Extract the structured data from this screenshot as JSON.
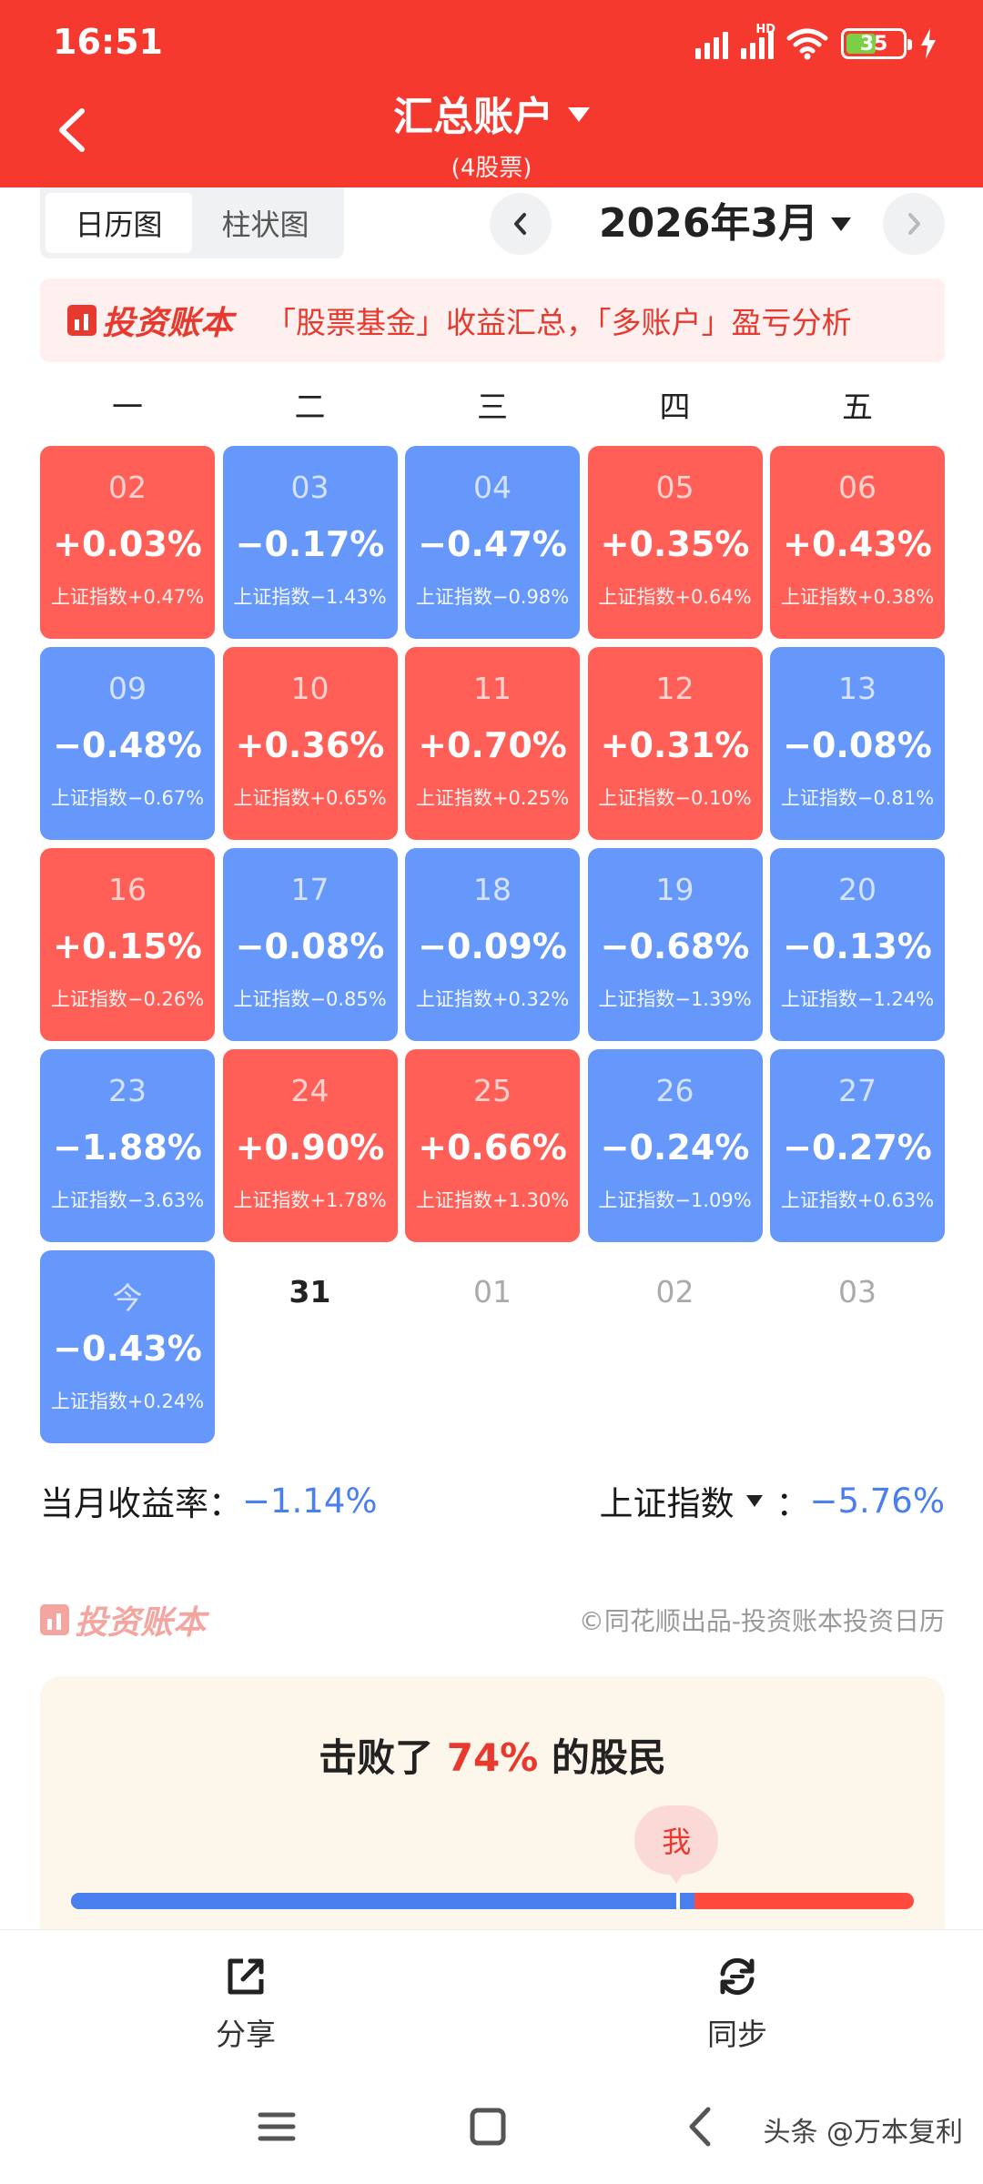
{
  "status_bar": {
    "time": "16:51",
    "network_label": "HD",
    "battery": "35"
  },
  "header": {
    "title": "汇总账户",
    "subtitle": "(4股票)"
  },
  "view_toggle": {
    "calendar": "日历图",
    "bar": "柱状图"
  },
  "month": {
    "label": "2026年3月"
  },
  "promo": {
    "brand": "投资账本",
    "text": "「股票基金」收益汇总，「多账户」盈亏分析"
  },
  "weekdays": [
    "一",
    "二",
    "三",
    "四",
    "五"
  ],
  "calendar": [
    {
      "day": "02",
      "pct": "+0.03%",
      "index": "上证指数+0.47%",
      "dir": "up"
    },
    {
      "day": "03",
      "pct": "−0.17%",
      "index": "上证指数−1.43%",
      "dir": "down"
    },
    {
      "day": "04",
      "pct": "−0.47%",
      "index": "上证指数−0.98%",
      "dir": "down"
    },
    {
      "day": "05",
      "pct": "+0.35%",
      "index": "上证指数+0.64%",
      "dir": "up"
    },
    {
      "day": "06",
      "pct": "+0.43%",
      "index": "上证指数+0.38%",
      "dir": "up"
    },
    {
      "day": "09",
      "pct": "−0.48%",
      "index": "上证指数−0.67%",
      "dir": "down"
    },
    {
      "day": "10",
      "pct": "+0.36%",
      "index": "上证指数+0.65%",
      "dir": "up"
    },
    {
      "day": "11",
      "pct": "+0.70%",
      "index": "上证指数+0.25%",
      "dir": "up"
    },
    {
      "day": "12",
      "pct": "+0.31%",
      "index": "上证指数−0.10%",
      "dir": "up"
    },
    {
      "day": "13",
      "pct": "−0.08%",
      "index": "上证指数−0.81%",
      "dir": "down"
    },
    {
      "day": "16",
      "pct": "+0.15%",
      "index": "上证指数−0.26%",
      "dir": "up"
    },
    {
      "day": "17",
      "pct": "−0.08%",
      "index": "上证指数−0.85%",
      "dir": "down"
    },
    {
      "day": "18",
      "pct": "−0.09%",
      "index": "上证指数+0.32%",
      "dir": "down"
    },
    {
      "day": "19",
      "pct": "−0.68%",
      "index": "上证指数−1.39%",
      "dir": "down"
    },
    {
      "day": "20",
      "pct": "−0.13%",
      "index": "上证指数−1.24%",
      "dir": "down"
    },
    {
      "day": "23",
      "pct": "−1.88%",
      "index": "上证指数−3.63%",
      "dir": "down"
    },
    {
      "day": "24",
      "pct": "+0.90%",
      "index": "上证指数+1.78%",
      "dir": "up"
    },
    {
      "day": "25",
      "pct": "+0.66%",
      "index": "上证指数+1.30%",
      "dir": "up"
    },
    {
      "day": "26",
      "pct": "−0.24%",
      "index": "上证指数−1.09%",
      "dir": "down"
    },
    {
      "day": "27",
      "pct": "−0.27%",
      "index": "上证指数+0.63%",
      "dir": "down"
    },
    {
      "day": "今",
      "pct": "−0.43%",
      "index": "上证指数+0.24%",
      "dir": "down"
    },
    {
      "day": "31",
      "pct": "",
      "index": "",
      "dir": "empty"
    },
    {
      "day": "01",
      "pct": "",
      "index": "",
      "dir": "other"
    },
    {
      "day": "02",
      "pct": "",
      "index": "",
      "dir": "other"
    },
    {
      "day": "03",
      "pct": "",
      "index": "",
      "dir": "other"
    }
  ],
  "summary": {
    "month_return_label": "当月收益率：",
    "month_return": "−1.14%",
    "index_label": "上证指数",
    "index_sep": "：",
    "index_return": "−5.76%"
  },
  "watermark": {
    "brand": "投资账本",
    "credit": "©同花顺出品-投资账本投资日历"
  },
  "beat": {
    "prefix": "击败了 ",
    "pct": "74%",
    "suffix": " 的股民",
    "me": "我",
    "value": 0.74
  },
  "actions": {
    "share": "分享",
    "sync": "同步"
  },
  "footer": {
    "credit": "头条 @万本复利"
  },
  "colors": {
    "header": "#f5392f",
    "up": "#ff5f56",
    "down": "#6697fa",
    "accent_blue": "#4a7ff0"
  }
}
